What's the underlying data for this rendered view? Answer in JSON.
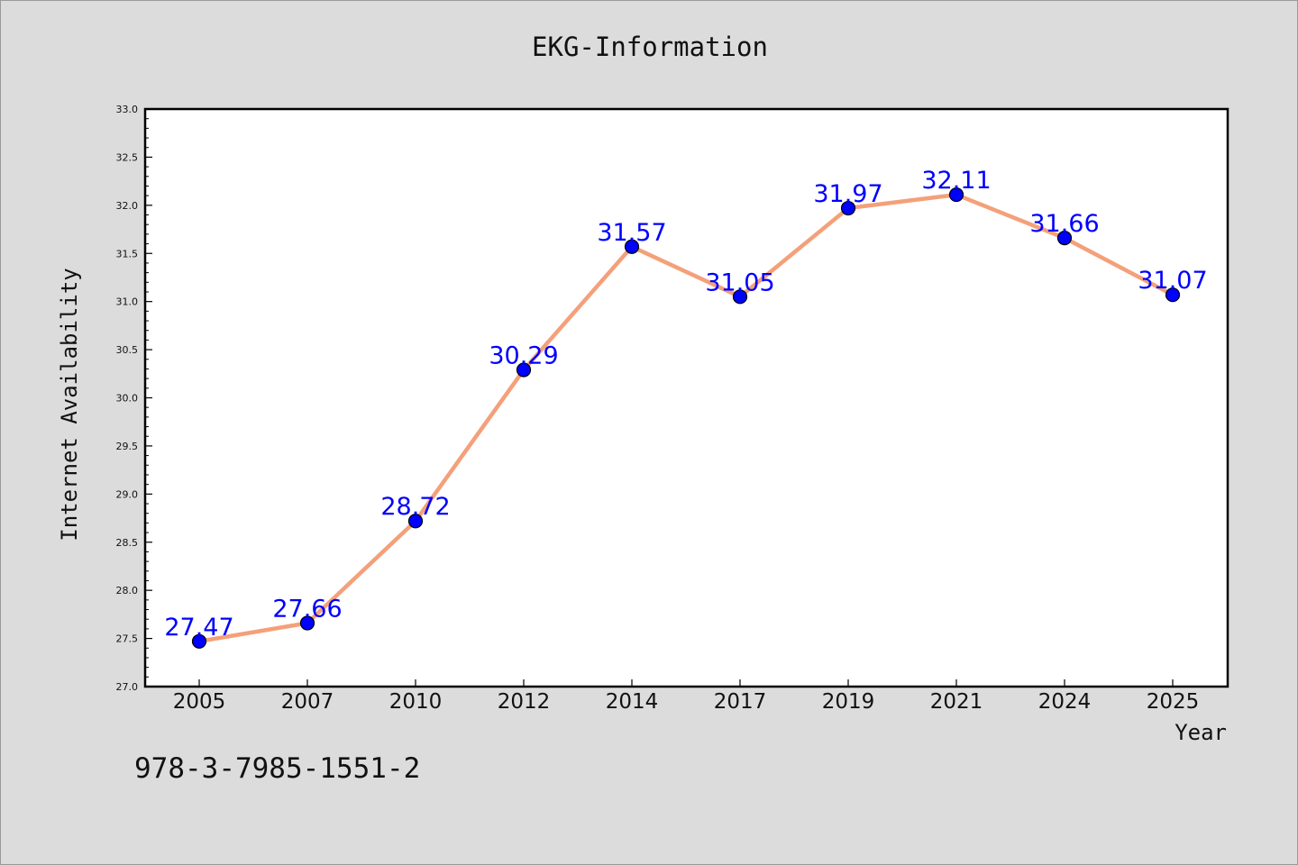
{
  "chart_data": {
    "type": "line",
    "title": "EKG-Information",
    "xlabel": "Year",
    "ylabel": "Internet Availability",
    "categories": [
      "2005",
      "2007",
      "2010",
      "2012",
      "2014",
      "2017",
      "2019",
      "2021",
      "2024",
      "2025"
    ],
    "series": [
      {
        "values": [
          27.47,
          27.66,
          28.72,
          30.29,
          31.57,
          31.05,
          31.97,
          32.11,
          31.66,
          31.07
        ],
        "data_labels": [
          "27.47",
          "27.66",
          "28.72",
          "30.29",
          "31.57",
          "31.05",
          "31.97",
          "32.11",
          "31.66",
          "31.07"
        ]
      }
    ],
    "ylim": [
      27.0,
      33.0
    ],
    "yticks": [
      "27.0",
      "27.5",
      "28.0",
      "28.5",
      "29.0",
      "29.5",
      "30.0",
      "30.5",
      "31.0",
      "31.5",
      "32.0",
      "32.5",
      "33.0"
    ],
    "grid": false,
    "legend": "none",
    "colors": {
      "line": "#f4a07a",
      "marker": "#0000ff",
      "label": "#0000ff",
      "plot_background": "#ffffff",
      "figure_background": "#dcdcdc"
    }
  },
  "footer": {
    "code": "978-3-7985-1551-2"
  }
}
